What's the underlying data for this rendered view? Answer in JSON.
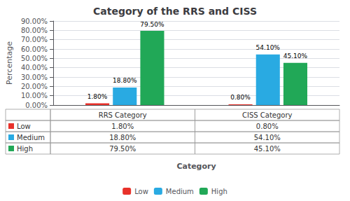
{
  "chart_data": {
    "type": "bar",
    "title": "Category of the RRS and CISS",
    "xlabel": "Category",
    "ylabel": "Percentage",
    "categories": [
      "RRS Category",
      "CISS Category"
    ],
    "series": [
      {
        "name": "Low",
        "color": "#e8312a",
        "values": [
          1.8,
          0.8
        ],
        "value_labels": [
          "1.80%",
          "0.80%"
        ]
      },
      {
        "name": "Medium",
        "color": "#29aae2",
        "values": [
          18.8,
          54.1
        ],
        "value_labels": [
          "18.80%",
          "54.10%"
        ]
      },
      {
        "name": "High",
        "color": "#21a857",
        "values": [
          79.5,
          45.1
        ],
        "value_labels": [
          "79.50%",
          "45.10%"
        ]
      }
    ],
    "ylim": [
      0,
      90
    ],
    "yticks": [
      {
        "value": 0,
        "label": "0.00%"
      },
      {
        "value": 10,
        "label": "10.00%"
      },
      {
        "value": 20,
        "label": "20.00%"
      },
      {
        "value": 30,
        "label": "30.00%"
      },
      {
        "value": 40,
        "label": "40.00%"
      },
      {
        "value": 50,
        "label": "50.00%"
      },
      {
        "value": 60,
        "label": "60.00%"
      },
      {
        "value": 70,
        "label": "70.00%"
      },
      {
        "value": 80,
        "label": "80.00%"
      },
      {
        "value": 90,
        "label": "90.00%"
      }
    ],
    "grid": true,
    "legend": "bottom",
    "data_labels": true,
    "tick_labels": "y"
  }
}
